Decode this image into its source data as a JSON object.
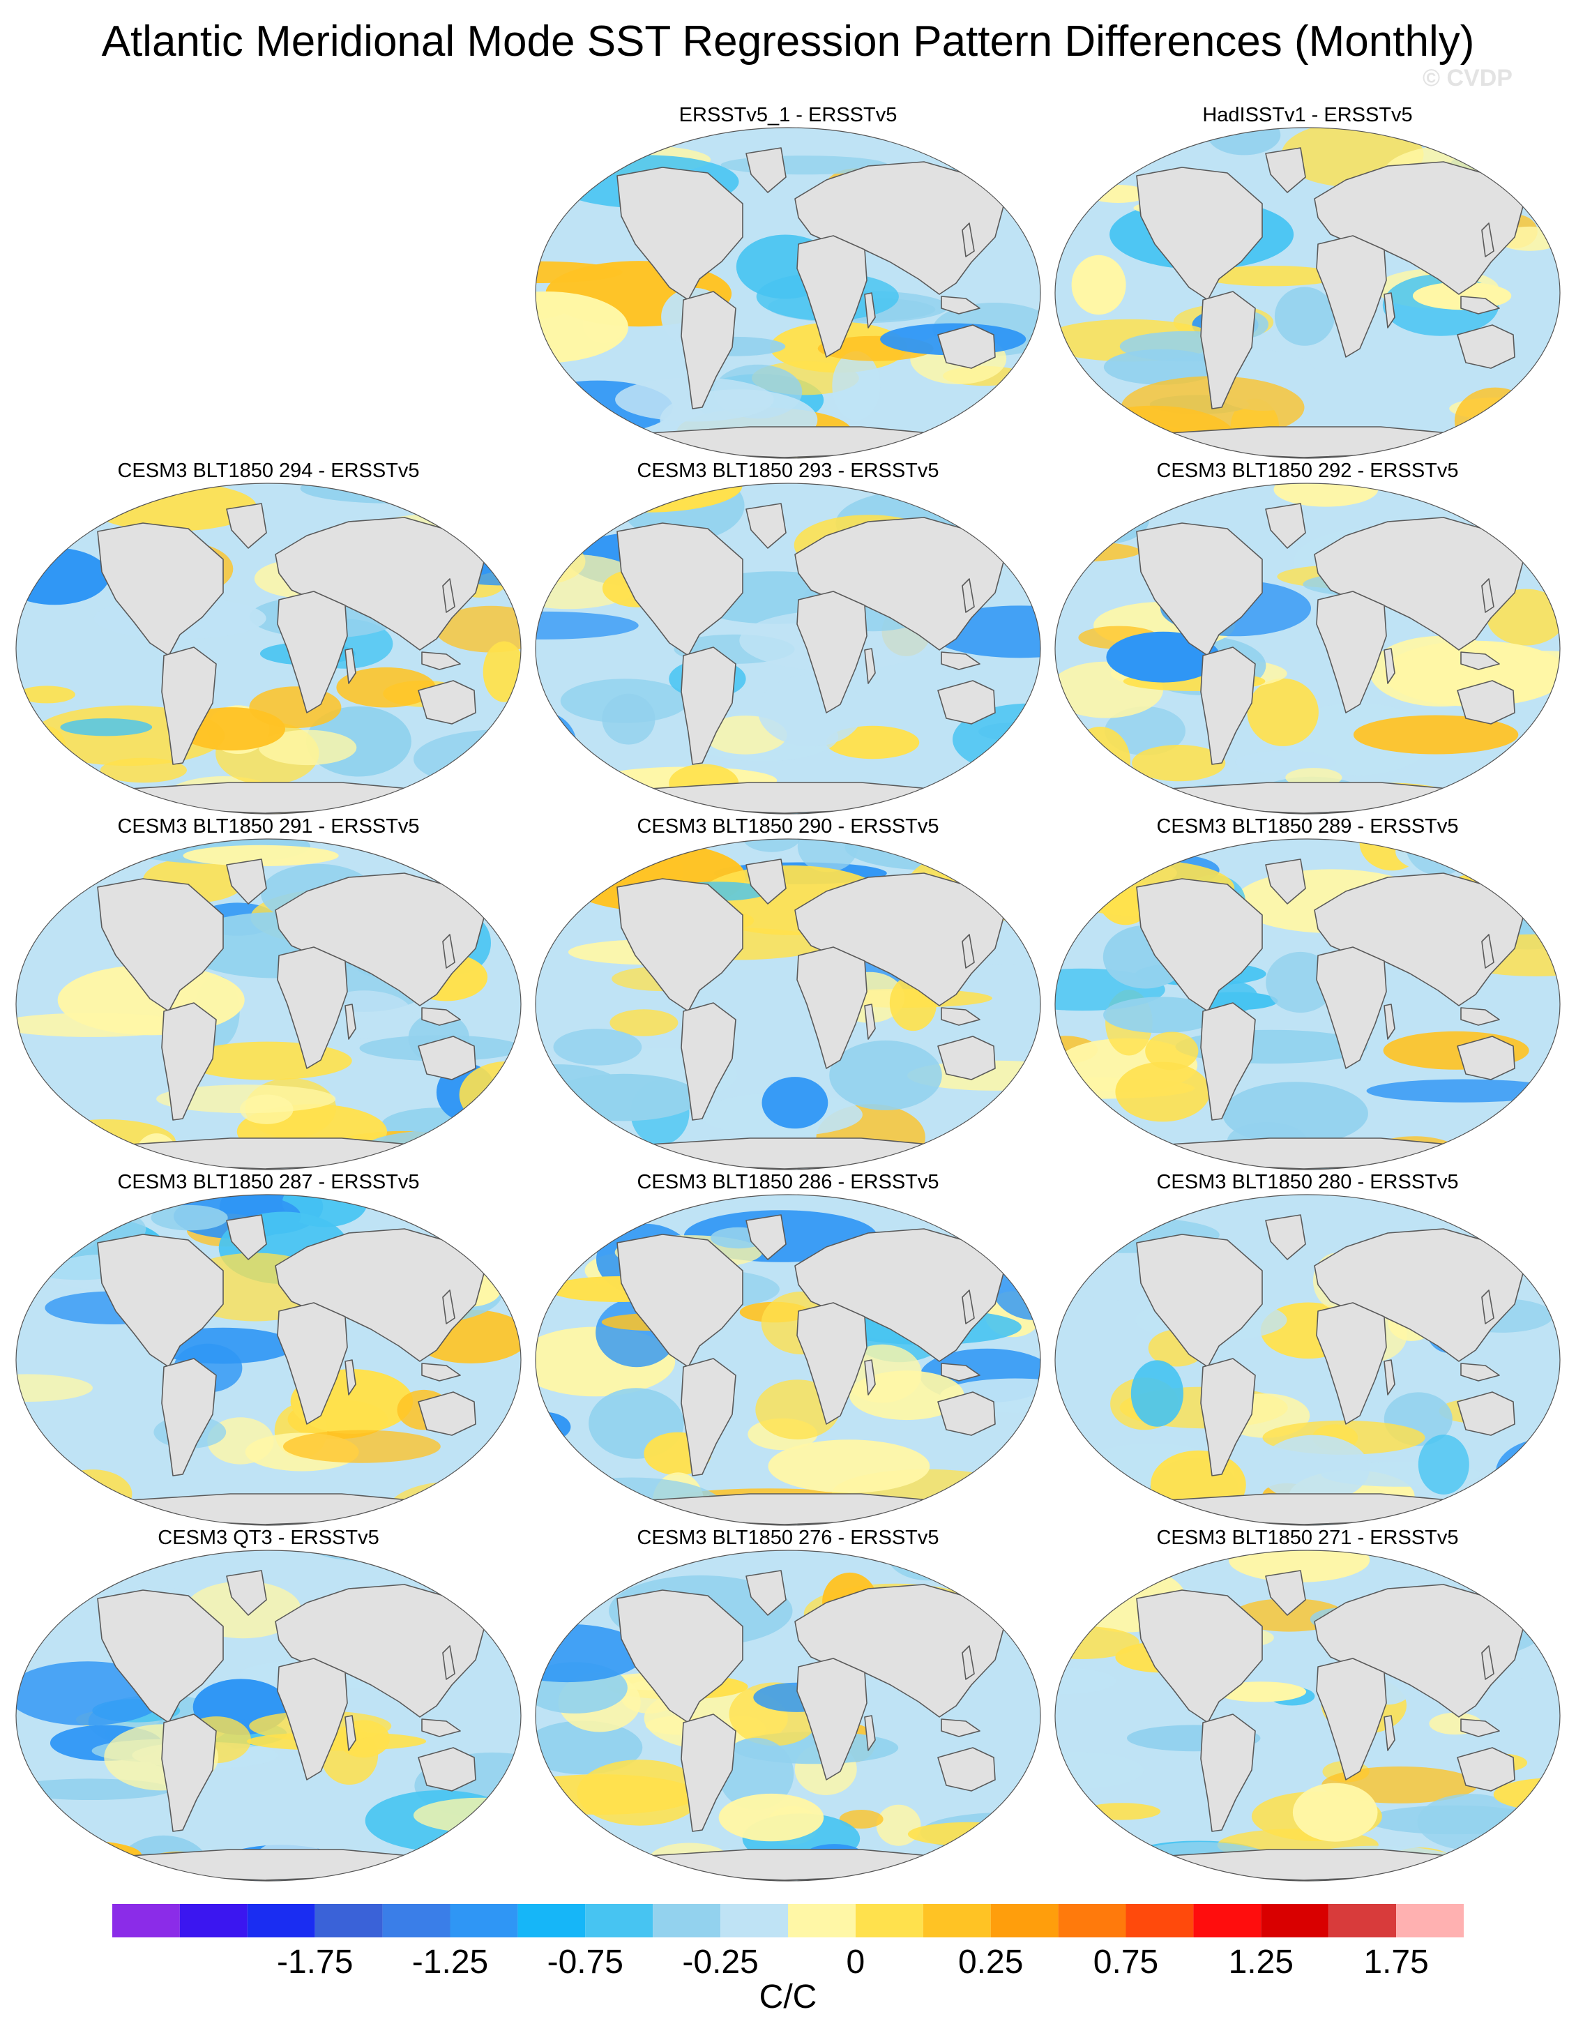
{
  "title": "Atlantic Meridional Mode SST Regression Pattern Differences (Monthly)",
  "credit": "© CVDP",
  "panels": [
    {
      "label": "",
      "empty": true
    },
    {
      "label": "ERSSTv5_1 - ERSSTv5"
    },
    {
      "label": "HadISSTv1 - ERSSTv5"
    },
    {
      "label": "CESM3 BLT1850 294 - ERSSTv5"
    },
    {
      "label": "CESM3 BLT1850 293 - ERSSTv5"
    },
    {
      "label": "CESM3 BLT1850 292 - ERSSTv5"
    },
    {
      "label": "CESM3 BLT1850 291 - ERSSTv5"
    },
    {
      "label": "CESM3 BLT1850 290 - ERSSTv5"
    },
    {
      "label": "CESM3 BLT1850 289 - ERSSTv5"
    },
    {
      "label": "CESM3 BLT1850 287 - ERSSTv5"
    },
    {
      "label": "CESM3 BLT1850 286 - ERSSTv5"
    },
    {
      "label": "CESM3 BLT1850 280 - ERSSTv5"
    },
    {
      "label": "CESM3 QT3 - ERSSTv5"
    },
    {
      "label": "CESM3 BLT1850 276 - ERSSTv5"
    },
    {
      "label": "CESM3 BLT1850 271 - ERSSTv5"
    }
  ],
  "colorbar": {
    "colors": [
      "#8b2ce8",
      "#3b16f0",
      "#1a2df2",
      "#3a62d8",
      "#3a7ee8",
      "#2f96f5",
      "#16b6f8",
      "#47c4f2",
      "#93d2ee",
      "#bfe3f5",
      "#fff7a6",
      "#ffe14d",
      "#ffc324",
      "#ff9e0c",
      "#ff7a0c",
      "#ff4a0c",
      "#ff0d0d",
      "#d90000",
      "#d83b3b",
      "#ffb1b1"
    ],
    "tick_labels": [
      "-1.75",
      "-1.25",
      "-0.75",
      "-0.25",
      "0",
      "0.25",
      "0.75",
      "1.25",
      "1.75"
    ],
    "units": "C/C"
  },
  "colors": {
    "land": "#e1e1e1",
    "coast": "#5a5a5a",
    "ocean_neutral_neg": "#bfe3f5",
    "ocean_neutral_pos": "#fff7a6"
  }
}
